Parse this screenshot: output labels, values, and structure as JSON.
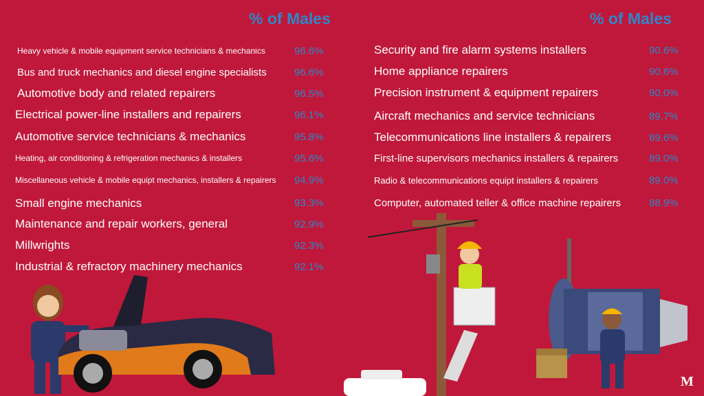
{
  "left": {
    "header": "% of Males",
    "rows": [
      {
        "label": "Heavy vehicle & mobile equipment service technicians & mechanics",
        "pct": "96.6%"
      },
      {
        "label": "Bus and truck mechanics and diesel engine specialists",
        "pct": "96.6%"
      },
      {
        "label": "Automotive body and related repairers",
        "pct": "96.5%"
      },
      {
        "label": "Electrical power-line installers and repairers",
        "pct": "96.1%"
      },
      {
        "label": "Automotive service technicians & mechanics",
        "pct": "95.8%"
      },
      {
        "label": "Heating, air conditioning & refrigeration mechanics & installers",
        "pct": "95.6%"
      },
      {
        "label": "Miscellaneous vehicle & mobile equipt mechanics, installers & repairers",
        "pct": "94.9%"
      },
      {
        "label": "Small engine mechanics",
        "pct": "93.3%"
      },
      {
        "label": "Maintenance and repair workers, general",
        "pct": "92.9%"
      },
      {
        "label": "Millwrights",
        "pct": "92.3%"
      },
      {
        "label": "Industrial & refractory machinery mechanics",
        "pct": "92.1%"
      }
    ]
  },
  "right": {
    "header": "% of Males",
    "rows": [
      {
        "label": "Security and fire alarm systems installers",
        "pct": "90.6%"
      },
      {
        "label": "Home appliance repairers",
        "pct": "90.6%"
      },
      {
        "label": "Precision instrument & equipment repairers",
        "pct": "90.0%"
      },
      {
        "label": "Aircraft mechanics and service technicians",
        "pct": "89.7%"
      },
      {
        "label": "Telecommunications line installers & repairers",
        "pct": "89.6%"
      },
      {
        "label": "First-line supervisors mechanics installers & repairers",
        "pct": "89.0%"
      },
      {
        "label": "Radio & telecommunications equipt installers & repairers",
        "pct": "89.0%"
      },
      {
        "label": "Computer, automated teller & office machine repairers",
        "pct": "88.9%"
      }
    ]
  },
  "logo": "M",
  "colors": {
    "background": "#c0183a",
    "accent": "#2f86c9",
    "text": "#ffffff"
  }
}
